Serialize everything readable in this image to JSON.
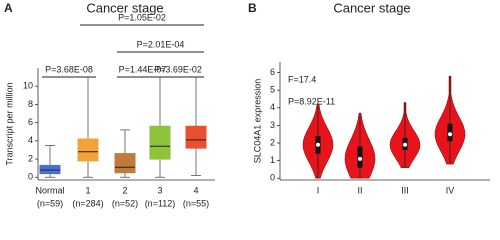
{
  "chart_data": [
    {
      "type": "box",
      "panel_label": "A",
      "title": "Cancer stage",
      "y_label": "Transcript per million",
      "categories": [
        "Normal",
        "1",
        "2",
        "3",
        "4"
      ],
      "category_notes": [
        "(n=59)",
        "(n=284)",
        "(n=52)",
        "(n=112)",
        "(n=55)"
      ],
      "colors": [
        "#4a6fd8",
        "#f5a13a",
        "#c07a3a",
        "#8ec33a",
        "#e8502f"
      ],
      "boxes": [
        {
          "low": 0,
          "q1": 0.4,
          "median": 0.8,
          "q3": 1.3,
          "high": 3.5
        },
        {
          "low": 0,
          "q1": 1.8,
          "median": 2.8,
          "q3": 4.2,
          "high": 11
        },
        {
          "low": 0,
          "q1": 0.5,
          "median": 1.1,
          "q3": 2.6,
          "high": 5.2
        },
        {
          "low": 0,
          "q1": 2.0,
          "median": 3.4,
          "q3": 5.6,
          "high": 11
        },
        {
          "low": 0.2,
          "q1": 3.2,
          "median": 4.1,
          "q3": 5.6,
          "high": 11
        }
      ],
      "ylim": [
        -0.3,
        12
      ],
      "yticks": [
        0,
        2,
        4,
        6,
        8,
        10
      ],
      "comparisons": [
        {
          "label": "P=1.05E-02",
          "from": "1",
          "to": "4"
        },
        {
          "label": "P=2.01E-04",
          "from": "2",
          "to": "4"
        },
        {
          "label": "P=3.68E-08",
          "from": "Normal",
          "to": "1"
        },
        {
          "label": "P=1.44E-07",
          "from": "2",
          "to": "3"
        },
        {
          "label": "P=3.69E-02",
          "from": "3",
          "to": "4"
        }
      ]
    },
    {
      "type": "violin",
      "panel_label": "B",
      "title": "Cancer stage",
      "y_label": "SLC04A1 expression",
      "annotations": [
        "F=17.4",
        "P=8.92E-11"
      ],
      "categories": [
        "I",
        "II",
        "III",
        "IV"
      ],
      "color": "#e8141c",
      "violins": [
        {
          "min": 0,
          "q1": 1.4,
          "median": 1.9,
          "q3": 2.4,
          "max": 4.2
        },
        {
          "min": 0,
          "q1": 0.6,
          "median": 1.1,
          "q3": 1.8,
          "max": 3.7
        },
        {
          "min": 0.6,
          "q1": 1.6,
          "median": 1.9,
          "q3": 2.3,
          "max": 4.3
        },
        {
          "min": 0.8,
          "q1": 2.1,
          "median": 2.5,
          "q3": 3.1,
          "max": 5.8
        }
      ],
      "ylim": [
        -0.1,
        6.6
      ],
      "yticks": [
        0,
        1,
        2,
        3,
        4,
        5,
        6
      ]
    }
  ]
}
